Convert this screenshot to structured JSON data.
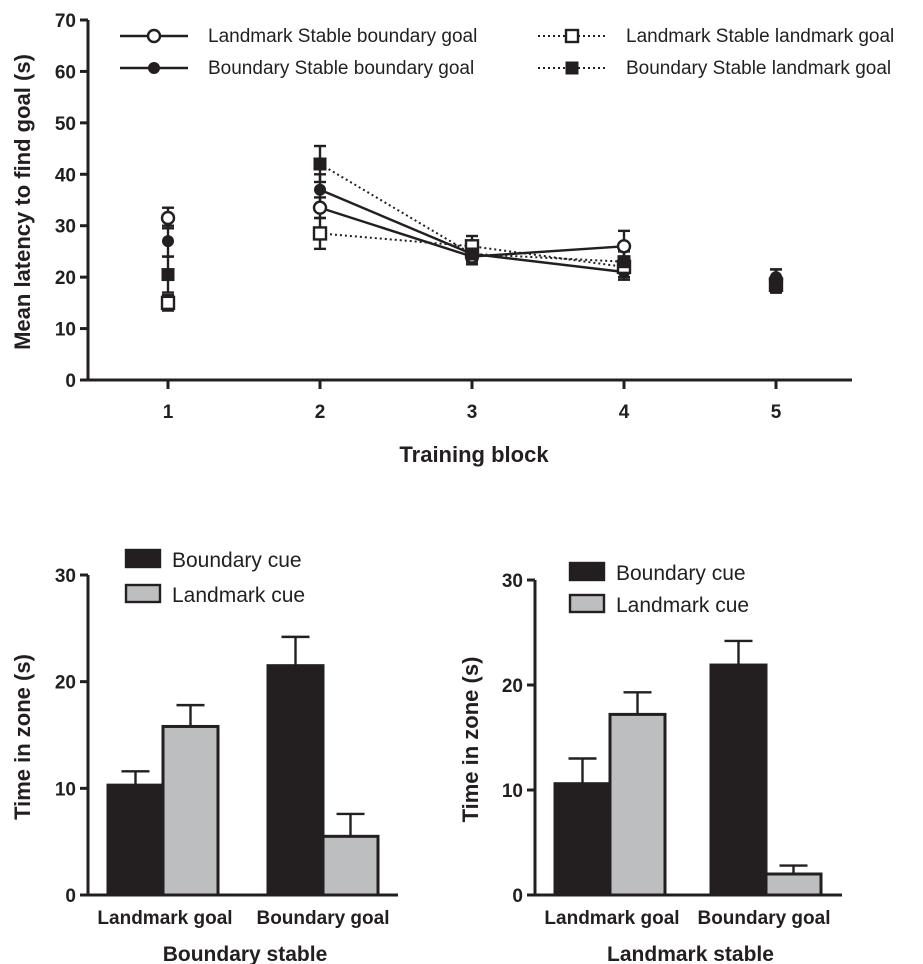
{
  "chart_data": [
    {
      "type": "line",
      "ylabel": "Mean latency to find goal (s)",
      "xlabel": "Training block",
      "ylim": [
        0,
        70
      ],
      "yticks": [
        "0",
        "10",
        "20",
        "30",
        "40",
        "50",
        "60",
        "70"
      ],
      "x": [
        1,
        2,
        3,
        4,
        5
      ],
      "xticks": [
        "1",
        "2",
        "3",
        "4",
        "5"
      ],
      "legend_position": "top",
      "series": [
        {
          "name": "Landmark Stable boundary goal",
          "values": [
            31.5,
            33.5,
            24,
            26,
            19.5
          ],
          "errors": [
            2,
            2,
            1.5,
            3,
            2
          ],
          "marker": "open-circle",
          "line": "solid",
          "connected": [
            2,
            3,
            4
          ]
        },
        {
          "name": "Boundary Stable boundary goal",
          "values": [
            27,
            37,
            24.5,
            21,
            20
          ],
          "errors": [
            3,
            3,
            1.5,
            1.5,
            1.5
          ],
          "marker": "filled-circle",
          "line": "solid",
          "connected": [
            2,
            3,
            4
          ]
        },
        {
          "name": "Landmark Stable landmark goal",
          "values": [
            15,
            28.5,
            26,
            22,
            18.5
          ],
          "errors": [
            1.5,
            3,
            2,
            2,
            1.5
          ],
          "marker": "open-square",
          "line": "dotted",
          "connected": [
            2,
            3,
            4
          ]
        },
        {
          "name": "Boundary Stable landmark goal",
          "values": [
            20.5,
            42,
            24.5,
            23,
            18.5
          ],
          "errors": [
            3.5,
            3.5,
            2,
            2,
            1.5
          ],
          "marker": "filled-square",
          "line": "dotted",
          "connected": [
            2,
            3,
            4
          ]
        }
      ]
    },
    {
      "type": "bar",
      "ylabel": "Time in zone (s)",
      "xlabel": "Boundary stable",
      "ylim": [
        0,
        30
      ],
      "yticks": [
        "0",
        "10",
        "20",
        "30"
      ],
      "categories": [
        "Landmark goal",
        "Boundary goal"
      ],
      "legend_position": "top",
      "series": [
        {
          "name": "Boundary cue",
          "values": [
            10.3,
            21.5
          ],
          "errors": [
            1.3,
            2.7
          ],
          "color": "#231f20"
        },
        {
          "name": "Landmark cue",
          "values": [
            15.8,
            5.5
          ],
          "errors": [
            2.0,
            2.1
          ],
          "color": "#bcbec0"
        }
      ]
    },
    {
      "type": "bar",
      "ylabel": "Time in zone (s)",
      "xlabel": "Landmark stable",
      "ylim": [
        0,
        30
      ],
      "yticks": [
        "0",
        "10",
        "20",
        "30"
      ],
      "categories": [
        "Landmark goal",
        "Boundary goal"
      ],
      "legend_position": "top",
      "series": [
        {
          "name": "Boundary cue",
          "values": [
            10.6,
            21.9
          ],
          "errors": [
            2.4,
            2.3
          ],
          "color": "#231f20"
        },
        {
          "name": "Landmark cue",
          "values": [
            17.2,
            2.0
          ],
          "errors": [
            2.1,
            0.8
          ],
          "color": "#bcbec0"
        }
      ]
    }
  ]
}
